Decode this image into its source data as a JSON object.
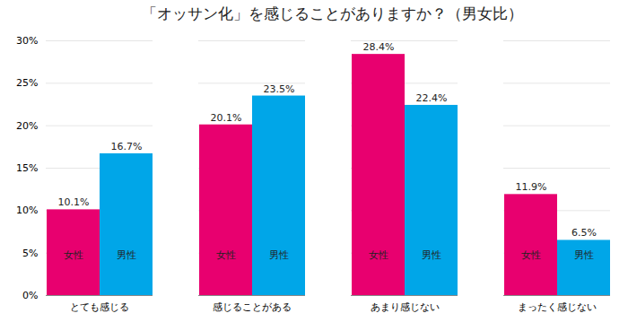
{
  "chart_data": {
    "type": "bar",
    "title": "「オッサン化」を感じることがありますか？（男女比）",
    "categories": [
      "とても感じる",
      "感じることがある",
      "あまり感じない",
      "まったく感じない"
    ],
    "series": [
      {
        "name": "女性",
        "color": "#e8006f",
        "values": [
          10.1,
          20.1,
          28.4,
          11.9
        ],
        "value_labels": [
          "10.1%",
          "20.1%",
          "28.4%",
          "11.9%"
        ]
      },
      {
        "name": "男性",
        "color": "#00a6e8",
        "values": [
          16.7,
          23.5,
          22.4,
          6.5
        ],
        "value_labels": [
          "16.7%",
          "23.5%",
          "22.4%",
          "6.5%"
        ]
      }
    ],
    "ylim": [
      0,
      30
    ],
    "yticks": [
      {
        "value": 0,
        "label": "0%"
      },
      {
        "value": 5,
        "label": "5%"
      },
      {
        "value": 10,
        "label": "10%"
      },
      {
        "value": 15,
        "label": "15%"
      },
      {
        "value": 20,
        "label": "20%"
      },
      {
        "value": 25,
        "label": "25%"
      },
      {
        "value": 30,
        "label": "30%"
      }
    ],
    "grid": true,
    "data_labels": true
  }
}
